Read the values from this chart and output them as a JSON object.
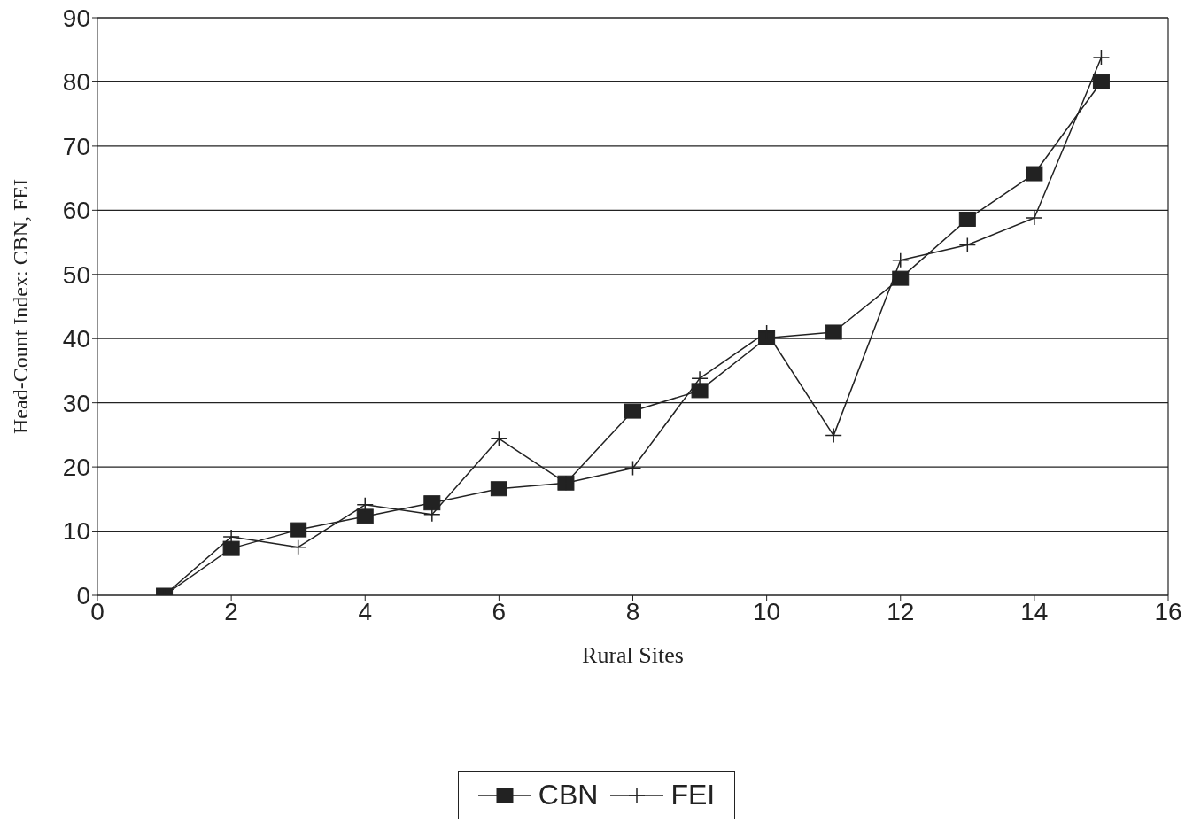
{
  "chart_data": {
    "type": "line",
    "xlabel": "Rural Sites",
    "ylabel": "Head-Count Index: CBN, FEI",
    "x": [
      1,
      2,
      3,
      4,
      5,
      6,
      7,
      8,
      9,
      10,
      11,
      12,
      13,
      14,
      15
    ],
    "series": [
      {
        "name": "CBN",
        "color": "#222222",
        "marker": "square",
        "values": [
          0,
          7.3,
          10.2,
          12.3,
          14.4,
          16.6,
          17.5,
          28.7,
          31.9,
          40.1,
          41.0,
          49.4,
          58.6,
          65.7,
          80.0
        ]
      },
      {
        "name": "FEI",
        "color": "#222222",
        "marker": "cross",
        "values": [
          0,
          9.1,
          7.5,
          14.1,
          12.6,
          24.4,
          17.5,
          19.8,
          33.8,
          41.0,
          24.9,
          52.2,
          54.6,
          58.8,
          83.8
        ]
      }
    ],
    "xlim": [
      0,
      16
    ],
    "xticks": [
      0,
      2,
      4,
      6,
      8,
      10,
      12,
      14,
      16
    ],
    "ylim": [
      0,
      90
    ],
    "yticks": [
      0,
      10,
      20,
      30,
      40,
      50,
      60,
      70,
      80,
      90
    ],
    "grid": "y",
    "legend": "bottom"
  }
}
